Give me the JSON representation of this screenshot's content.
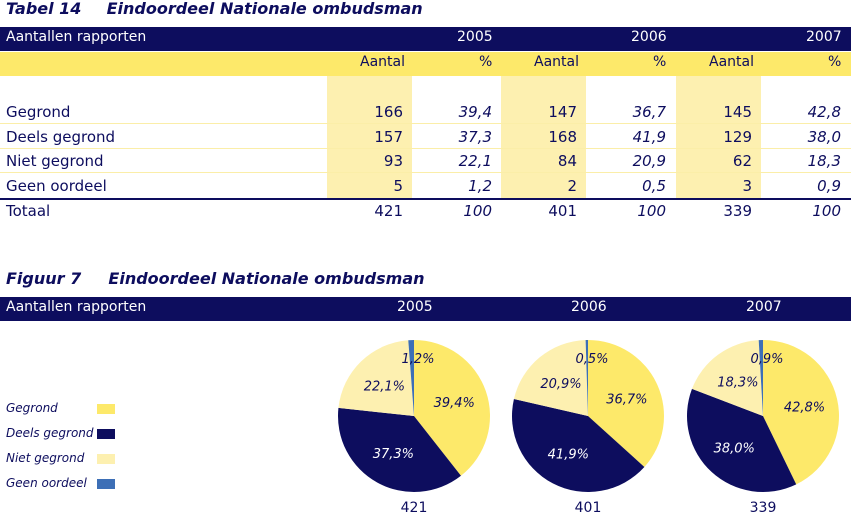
{
  "table": {
    "title_num": "Tabel 14",
    "title_text": "Eindoordeel Nationale ombudsman",
    "header_label": "Aantallen rapporten",
    "years": [
      "2005",
      "2006",
      "2007"
    ],
    "col_count": "Aantal",
    "col_pct": "%",
    "rows": [
      {
        "label": "Gegrond",
        "cells": [
          "166",
          "39,4",
          "147",
          "36,7",
          "145",
          "42,8"
        ]
      },
      {
        "label": "Deels gegrond",
        "cells": [
          "157",
          "37,3",
          "168",
          "41,9",
          "129",
          "38,0"
        ]
      },
      {
        "label": "Niet gegrond",
        "cells": [
          "93",
          "22,1",
          "84",
          "20,9",
          "62",
          "18,3"
        ]
      },
      {
        "label": "Geen oordeel",
        "cells": [
          "5",
          "1,2",
          "2",
          "0,5",
          "3",
          "0,9"
        ]
      }
    ],
    "total": {
      "label": "Totaal",
      "cells": [
        "421",
        "100",
        "401",
        "100",
        "339",
        "100"
      ]
    }
  },
  "figure": {
    "title_num": "Figuur 7",
    "title_text": "Eindoordeel Nationale ombudsman",
    "header_label": "Aantallen rapporten",
    "legend": [
      "Gegrond",
      "Deels gegrond",
      "Niet gegrond",
      "Geen oordeel"
    ]
  },
  "colors": {
    "navy": "#0d0d5e",
    "gegrond": "#fde96a",
    "deels": "#0d0d5e",
    "niet": "#fdf0b0",
    "geen": "#3d6fb6"
  },
  "chart_data": {
    "type": "pie",
    "title": "Eindoordeel Nationale ombudsman",
    "categories": [
      "Gegrond",
      "Deels gegrond",
      "Niet gegrond",
      "Geen oordeel"
    ],
    "series": [
      {
        "name": "2005",
        "values": [
          39.4,
          37.3,
          22.1,
          1.2
        ],
        "labels": [
          "39,4%",
          "37,3%",
          "22,1%",
          "1,2%"
        ],
        "total": "421"
      },
      {
        "name": "2006",
        "values": [
          36.7,
          41.9,
          20.9,
          0.5
        ],
        "labels": [
          "36,7%",
          "41,9%",
          "20,9%",
          "0,5%"
        ],
        "total": "401"
      },
      {
        "name": "2007",
        "values": [
          42.8,
          38.0,
          18.3,
          0.9
        ],
        "labels": [
          "42,8%",
          "38,0%",
          "18,3%",
          "0,9%"
        ],
        "total": "339"
      }
    ]
  }
}
